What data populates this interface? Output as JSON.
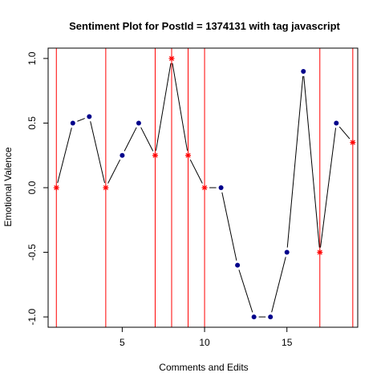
{
  "chart_data": {
    "type": "line",
    "title": "Sentiment Plot for PostId =  1374131  with tag  javascript",
    "xlabel": "Comments and Edits",
    "ylabel": "Emotional Valence",
    "xlim": [
      0.5,
      19.3
    ],
    "ylim": [
      -1.08,
      1.08
    ],
    "x_ticks": [
      5,
      10,
      15
    ],
    "y_ticks": [
      -1.0,
      -0.5,
      0.0,
      0.5,
      1.0
    ],
    "x_tick_labels": [
      "5",
      "10",
      "15"
    ],
    "y_tick_labels": [
      "-1.0",
      "-0.5",
      "0.0",
      "0.5",
      "1.0"
    ],
    "x": [
      1,
      2,
      3,
      4,
      5,
      6,
      7,
      8,
      9,
      10,
      11,
      12,
      13,
      14,
      15,
      16,
      17,
      18,
      19
    ],
    "values": [
      0.0,
      0.5,
      0.55,
      0.0,
      0.25,
      0.5,
      0.25,
      1.0,
      0.25,
      0.0,
      0.0,
      -0.6,
      -1.0,
      -1.0,
      -0.5,
      0.9,
      -0.5,
      0.5,
      0.35
    ],
    "edit_points": [
      1,
      4,
      7,
      8,
      9,
      10,
      17,
      19
    ],
    "colors": {
      "line": "#000000",
      "comment_point": "#00008B",
      "edit_marker": "#FF0000",
      "vertical_line": "#FF0000"
    },
    "grid": false
  }
}
